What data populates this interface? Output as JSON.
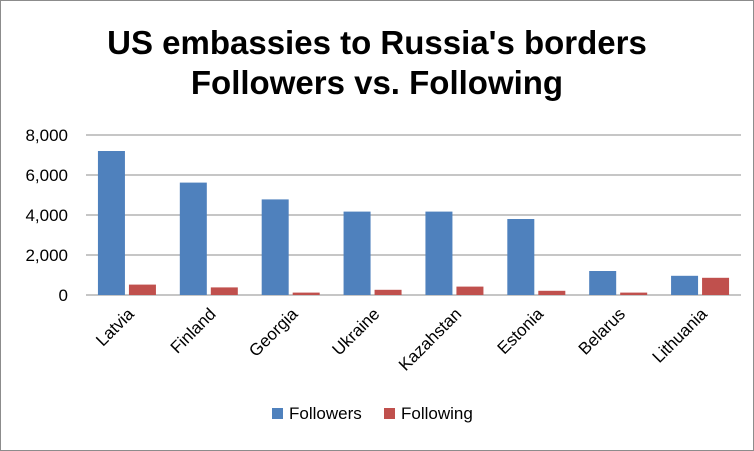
{
  "chart_data": {
    "type": "bar",
    "title_line1": "US embassies to Russia's borders",
    "title_line2": "Followers vs. Following",
    "categories": [
      "Latvia",
      "Finland",
      "Georgia",
      "Ukraine",
      "Kazahstan",
      "Estonia",
      "Belarus",
      "Lithuania"
    ],
    "series": [
      {
        "name": "Followers",
        "color": "#4F81BD",
        "values": [
          7200,
          5620,
          4780,
          4170,
          4170,
          3800,
          1200,
          960
        ]
      },
      {
        "name": "Following",
        "color": "#C0504D",
        "values": [
          520,
          380,
          120,
          260,
          420,
          210,
          120,
          860
        ]
      }
    ],
    "y_ticks": [
      "0",
      "2,000",
      "4,000",
      "6,000",
      "8,000"
    ],
    "ylim": [
      0,
      8000
    ],
    "grid": true,
    "legend_position": "bottom"
  }
}
